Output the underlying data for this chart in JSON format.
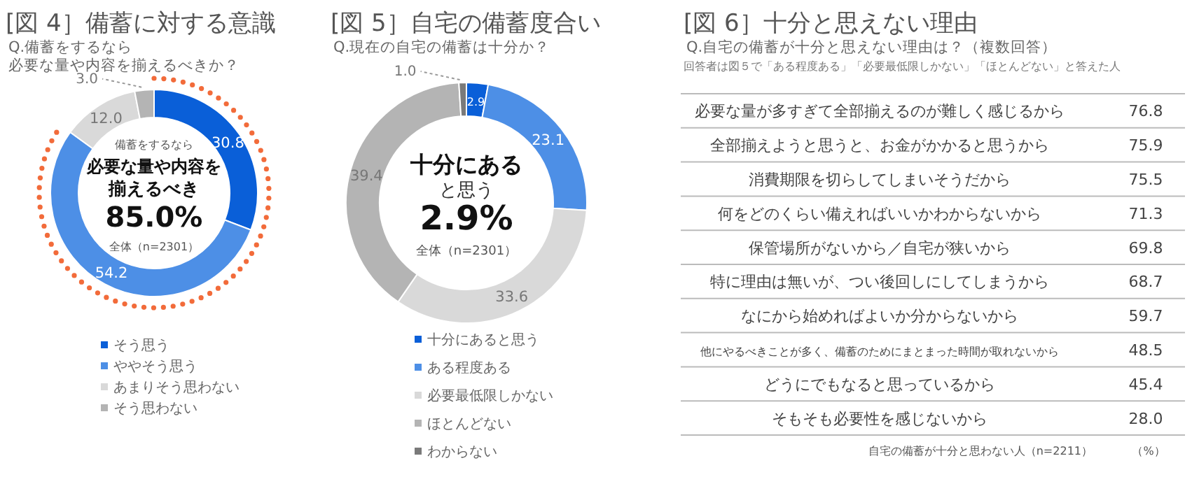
{
  "chart_data": [
    {
      "type": "donut",
      "title": "[図 4］備蓄に対する意識",
      "subtitle": "Q.備蓄をするなら",
      "categories": [
        "そう思う",
        "ややそう思う",
        "あまりそう思わない",
        "そう思わない"
      ],
      "values": [
        30.8,
        54.2,
        12.0,
        3.0
      ],
      "colors": [
        "#0a5fd8",
        "#4d8fe6",
        "#d9d9d9",
        "#b4b4b4"
      ],
      "value_labels": [
        "30.8",
        "54.2",
        "12.0",
        "3.0"
      ],
      "legend": "bottom",
      "annotations": [
        "必要な量や内容を揃えるべきか？",
        "備蓄をするなら",
        "必要な量や内容を",
        "揃えるべき",
        "85.0%",
        "全体（n=2301）"
      ]
    },
    {
      "type": "donut",
      "title": "[図 5］自宅の備蓄度合い",
      "subtitle": "Q.現在の自宅の備蓄は十分か？",
      "categories": [
        "十分にあると思う",
        "ある程度ある",
        "必要最低限しかない",
        "ほとんどない",
        "わからない"
      ],
      "values": [
        2.9,
        23.1,
        33.6,
        39.4,
        1.0
      ],
      "colors": [
        "#0a5fd8",
        "#4d8fe6",
        "#d9d9d9",
        "#b4b4b4",
        "#7a7a7a"
      ],
      "value_labels": [
        "2.9",
        "23.1",
        "33.6",
        "39.4",
        "1.0"
      ],
      "legend": "bottom",
      "annotations": [
        "十分にある",
        "と思う",
        "2.9%",
        "全体（n=2301）"
      ]
    },
    {
      "type": "other",
      "title": "[図 6］十分と思えない理由",
      "subtitle": "Q.自宅の備蓄が十分と思えない理由は？（複数回答）",
      "categories": [
        "必要な量が多すぎて全部揃えるのが難しく感じるから",
        "全部揃えようと思うと、お金がかかると思うから",
        "消費期限を切らしてしまいそうだから",
        "何をどのくらい備えればいいかわからないから",
        "保管場所がないから／自宅が狭いから",
        "特に理由は無いが、つい後回しにしてしまうから",
        "なにから始めればよいか分からないから",
        "他にやるべきことが多く、備蓄のためにまとまった時間が取れないから",
        "どうにでもなると思っているから",
        "そもそも必要性を感じないから"
      ],
      "values": [
        76.8,
        75.9,
        75.5,
        71.3,
        69.8,
        68.7,
        59.7,
        48.5,
        45.4,
        28.0
      ],
      "value_labels": [
        "76.8",
        "75.9",
        "75.5",
        "71.3",
        "69.8",
        "68.7",
        "59.7",
        "48.5",
        "45.4",
        "28.0"
      ],
      "annotations": [
        "回答者は図５で「ある程度ある」「必要最低限しかない」「ほとんどない」と答えた人",
        "自宅の備蓄が十分と思わない人（n=2211）",
        "（%）"
      ]
    }
  ]
}
